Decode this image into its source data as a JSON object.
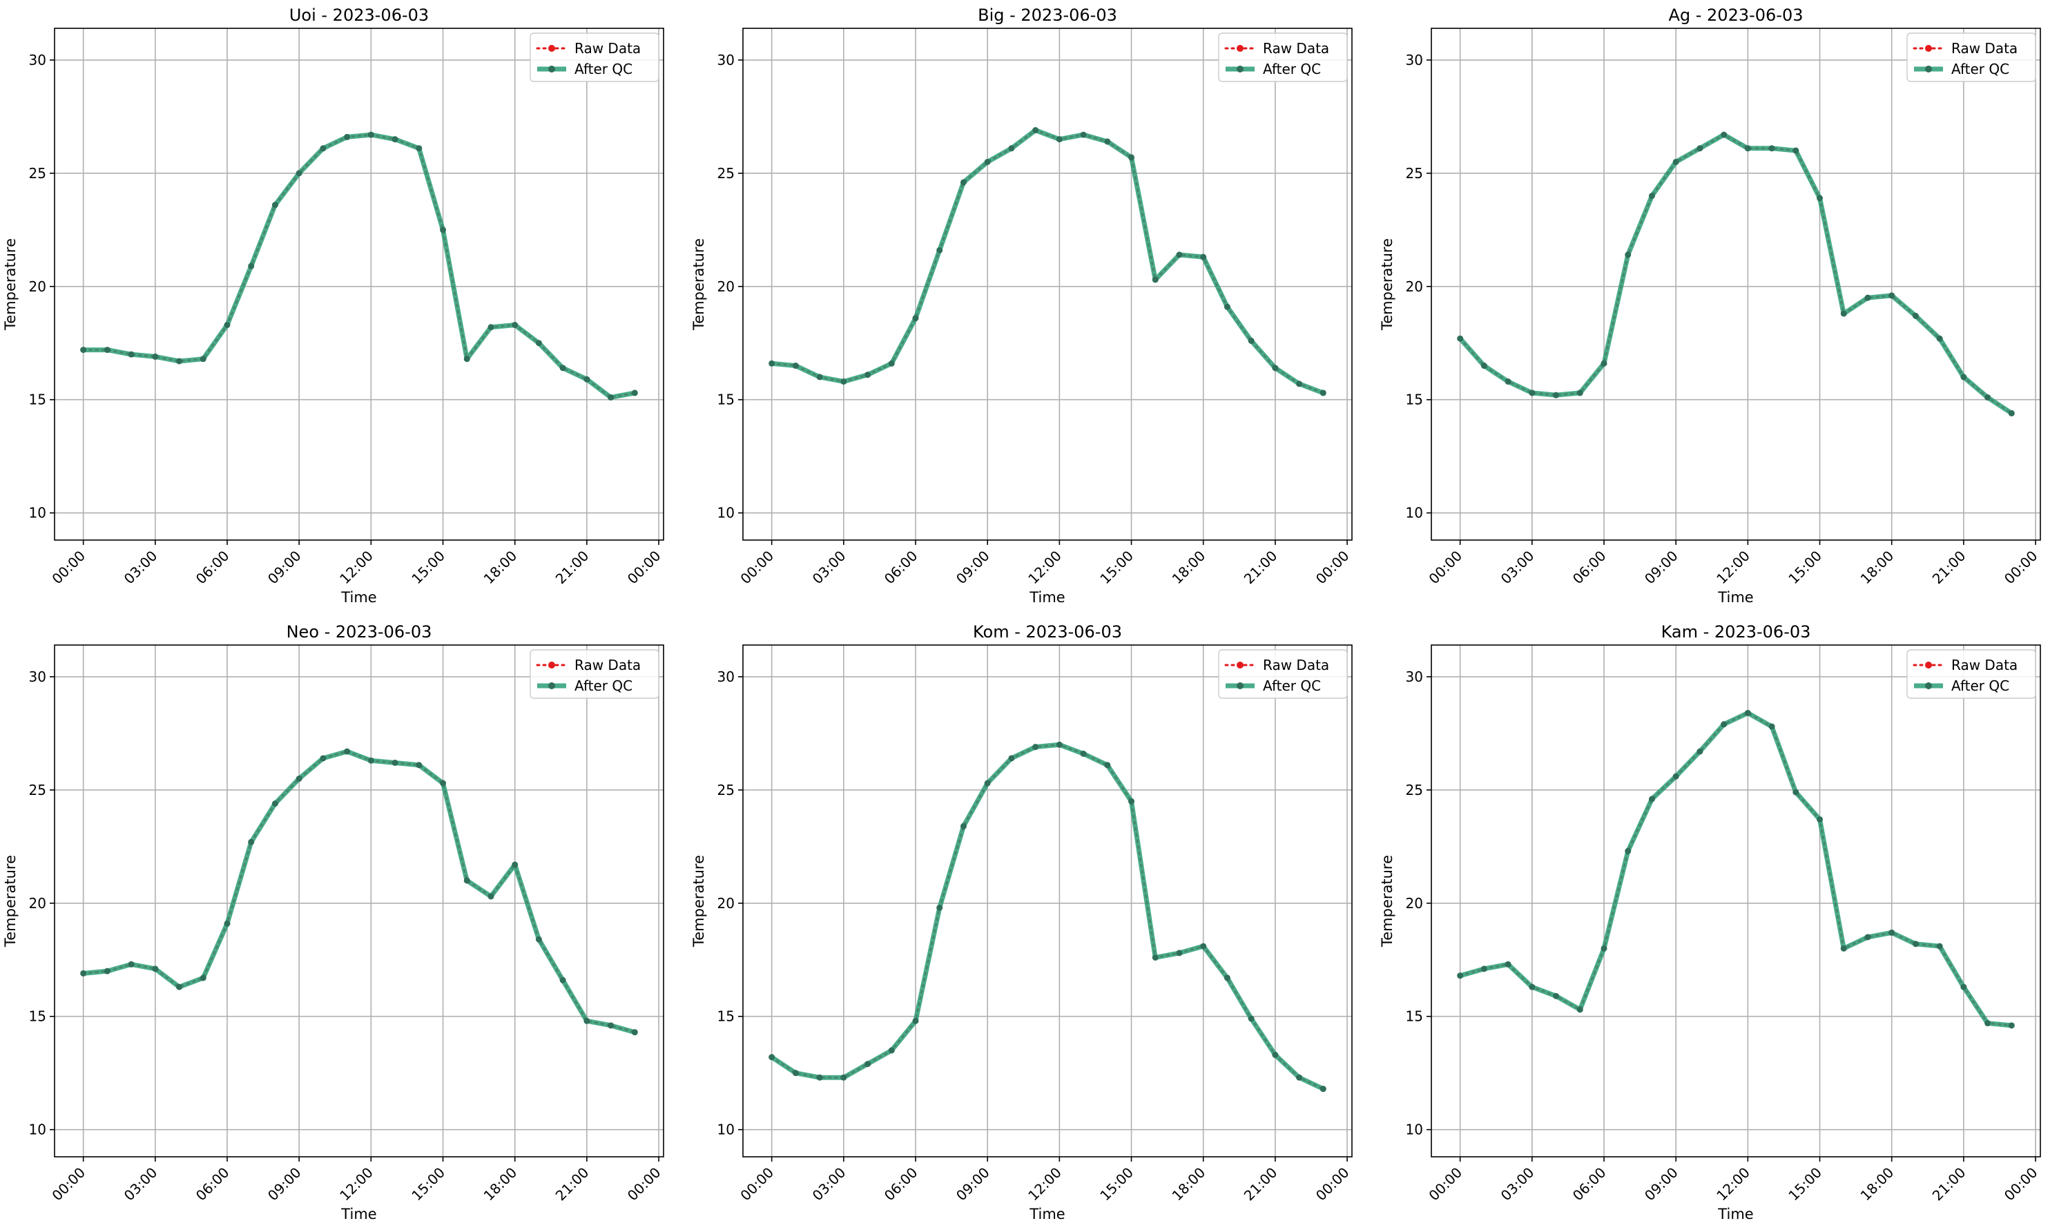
{
  "colors": {
    "raw": "#e41a1c",
    "qc": "#2a9d77",
    "qc_marker": "#2f6f5a",
    "grid": "#b0b0b0",
    "axis": "#000000"
  },
  "legend": {
    "raw_label": "Raw Data",
    "qc_label": "After QC",
    "placement": "upper-right"
  },
  "chart_data": [
    {
      "type": "line",
      "title": "Uoi - 2023-06-03",
      "xlabel": "Time",
      "ylabel": "Temperature",
      "x_unit": "hour",
      "x_tick_labels": [
        "00:00",
        "03:00",
        "06:00",
        "09:00",
        "12:00",
        "15:00",
        "18:00",
        "21:00",
        "00:00"
      ],
      "x_ticks": [
        0,
        3,
        6,
        9,
        12,
        15,
        18,
        21,
        24
      ],
      "xlim": [
        -1.2,
        24.2
      ],
      "y_ticks": [
        10,
        15,
        20,
        25,
        30
      ],
      "ylim": [
        8.8,
        31.4
      ],
      "grid": true,
      "x": [
        0,
        1,
        2,
        3,
        4,
        5,
        6,
        7,
        8,
        9,
        10,
        11,
        12,
        13,
        14,
        15,
        16,
        17,
        18,
        19,
        20,
        21,
        22,
        23
      ],
      "series": [
        {
          "name": "Raw Data",
          "values": [
            17.2,
            17.2,
            17.0,
            16.9,
            16.7,
            16.8,
            18.3,
            20.9,
            23.6,
            25.0,
            26.1,
            26.6,
            26.7,
            26.5,
            26.1,
            22.5,
            16.8,
            18.2,
            18.3,
            17.5,
            16.4,
            15.9,
            15.1,
            15.3
          ]
        },
        {
          "name": "After QC",
          "values": [
            17.2,
            17.2,
            17.0,
            16.9,
            16.7,
            16.8,
            18.3,
            20.9,
            23.6,
            25.0,
            26.1,
            26.6,
            26.7,
            26.5,
            26.1,
            22.5,
            16.8,
            18.2,
            18.3,
            17.5,
            16.4,
            15.9,
            15.1,
            15.3
          ]
        }
      ]
    },
    {
      "type": "line",
      "title": "Big - 2023-06-03",
      "xlabel": "Time",
      "ylabel": "Temperature",
      "x_unit": "hour",
      "x_tick_labels": [
        "00:00",
        "03:00",
        "06:00",
        "09:00",
        "12:00",
        "15:00",
        "18:00",
        "21:00",
        "00:00"
      ],
      "x_ticks": [
        0,
        3,
        6,
        9,
        12,
        15,
        18,
        21,
        24
      ],
      "xlim": [
        -1.2,
        24.2
      ],
      "y_ticks": [
        10,
        15,
        20,
        25,
        30
      ],
      "ylim": [
        8.8,
        31.4
      ],
      "grid": true,
      "x": [
        0,
        1,
        2,
        3,
        4,
        5,
        6,
        7,
        8,
        9,
        10,
        11,
        12,
        13,
        14,
        15,
        16,
        17,
        18,
        19,
        20,
        21,
        22,
        23
      ],
      "series": [
        {
          "name": "Raw Data",
          "values": [
            16.6,
            16.5,
            16.0,
            15.8,
            16.1,
            16.6,
            18.6,
            21.6,
            24.6,
            25.5,
            26.1,
            26.9,
            26.5,
            26.7,
            26.4,
            25.7,
            20.3,
            21.4,
            21.3,
            19.1,
            17.6,
            16.4,
            15.7,
            15.3
          ]
        },
        {
          "name": "After QC",
          "values": [
            16.6,
            16.5,
            16.0,
            15.8,
            16.1,
            16.6,
            18.6,
            21.6,
            24.6,
            25.5,
            26.1,
            26.9,
            26.5,
            26.7,
            26.4,
            25.7,
            20.3,
            21.4,
            21.3,
            19.1,
            17.6,
            16.4,
            15.7,
            15.3
          ]
        }
      ]
    },
    {
      "type": "line",
      "title": "Ag - 2023-06-03",
      "xlabel": "Time",
      "ylabel": "Temperature",
      "x_unit": "hour",
      "x_tick_labels": [
        "00:00",
        "03:00",
        "06:00",
        "09:00",
        "12:00",
        "15:00",
        "18:00",
        "21:00",
        "00:00"
      ],
      "x_ticks": [
        0,
        3,
        6,
        9,
        12,
        15,
        18,
        21,
        24
      ],
      "xlim": [
        -1.2,
        24.2
      ],
      "y_ticks": [
        10,
        15,
        20,
        25,
        30
      ],
      "ylim": [
        8.8,
        31.4
      ],
      "grid": true,
      "x": [
        0,
        1,
        2,
        3,
        4,
        5,
        6,
        7,
        8,
        9,
        10,
        11,
        12,
        13,
        14,
        15,
        16,
        17,
        18,
        19,
        20,
        21,
        22,
        23
      ],
      "series": [
        {
          "name": "Raw Data",
          "values": [
            17.7,
            16.5,
            15.8,
            15.3,
            15.2,
            15.3,
            16.6,
            21.4,
            24.0,
            25.5,
            26.1,
            26.7,
            26.1,
            26.1,
            26.0,
            23.9,
            18.8,
            19.5,
            19.6,
            18.7,
            17.7,
            16.0,
            15.1,
            14.4
          ]
        },
        {
          "name": "After QC",
          "values": [
            17.7,
            16.5,
            15.8,
            15.3,
            15.2,
            15.3,
            16.6,
            21.4,
            24.0,
            25.5,
            26.1,
            26.7,
            26.1,
            26.1,
            26.0,
            23.9,
            18.8,
            19.5,
            19.6,
            18.7,
            17.7,
            16.0,
            15.1,
            14.4
          ]
        }
      ]
    },
    {
      "type": "line",
      "title": "Neo - 2023-06-03",
      "xlabel": "Time",
      "ylabel": "Temperature",
      "x_unit": "hour",
      "x_tick_labels": [
        "00:00",
        "03:00",
        "06:00",
        "09:00",
        "12:00",
        "15:00",
        "18:00",
        "21:00",
        "00:00"
      ],
      "x_ticks": [
        0,
        3,
        6,
        9,
        12,
        15,
        18,
        21,
        24
      ],
      "xlim": [
        -1.2,
        24.2
      ],
      "y_ticks": [
        10,
        15,
        20,
        25,
        30
      ],
      "ylim": [
        8.8,
        31.4
      ],
      "grid": true,
      "x": [
        0,
        1,
        2,
        3,
        4,
        5,
        6,
        7,
        8,
        9,
        10,
        11,
        12,
        13,
        14,
        15,
        16,
        17,
        18,
        19,
        20,
        21,
        22,
        23
      ],
      "series": [
        {
          "name": "Raw Data",
          "values": [
            16.9,
            17.0,
            17.3,
            17.1,
            16.3,
            16.7,
            19.1,
            22.7,
            24.4,
            25.5,
            26.4,
            26.7,
            26.3,
            26.2,
            26.1,
            25.3,
            21.0,
            20.3,
            21.7,
            18.4,
            16.6,
            14.8,
            14.6,
            14.3
          ]
        },
        {
          "name": "After QC",
          "values": [
            16.9,
            17.0,
            17.3,
            17.1,
            16.3,
            16.7,
            19.1,
            22.7,
            24.4,
            25.5,
            26.4,
            26.7,
            26.3,
            26.2,
            26.1,
            25.3,
            21.0,
            20.3,
            21.7,
            18.4,
            16.6,
            14.8,
            14.6,
            14.3
          ]
        }
      ]
    },
    {
      "type": "line",
      "title": "Kom - 2023-06-03",
      "xlabel": "Time",
      "ylabel": "Temperature",
      "x_unit": "hour",
      "x_tick_labels": [
        "00:00",
        "03:00",
        "06:00",
        "09:00",
        "12:00",
        "15:00",
        "18:00",
        "21:00",
        "00:00"
      ],
      "x_ticks": [
        0,
        3,
        6,
        9,
        12,
        15,
        18,
        21,
        24
      ],
      "xlim": [
        -1.2,
        24.2
      ],
      "y_ticks": [
        10,
        15,
        20,
        25,
        30
      ],
      "ylim": [
        8.8,
        31.4
      ],
      "grid": true,
      "x": [
        0,
        1,
        2,
        3,
        4,
        5,
        6,
        7,
        8,
        9,
        10,
        11,
        12,
        13,
        14,
        15,
        16,
        17,
        18,
        19,
        20,
        21,
        22,
        23
      ],
      "series": [
        {
          "name": "Raw Data",
          "values": [
            13.2,
            12.5,
            12.3,
            12.3,
            12.9,
            13.5,
            14.8,
            19.8,
            23.4,
            25.3,
            26.4,
            26.9,
            27.0,
            26.6,
            26.1,
            24.5,
            17.6,
            17.8,
            18.1,
            16.7,
            14.9,
            13.3,
            12.3,
            11.8
          ]
        },
        {
          "name": "After QC",
          "values": [
            13.2,
            12.5,
            12.3,
            12.3,
            12.9,
            13.5,
            14.8,
            19.8,
            23.4,
            25.3,
            26.4,
            26.9,
            27.0,
            26.6,
            26.1,
            24.5,
            17.6,
            17.8,
            18.1,
            16.7,
            14.9,
            13.3,
            12.3,
            11.8
          ]
        }
      ]
    },
    {
      "type": "line",
      "title": "Kam - 2023-06-03",
      "xlabel": "Time",
      "ylabel": "Temperature",
      "x_unit": "hour",
      "x_tick_labels": [
        "00:00",
        "03:00",
        "06:00",
        "09:00",
        "12:00",
        "15:00",
        "18:00",
        "21:00",
        "00:00"
      ],
      "x_ticks": [
        0,
        3,
        6,
        9,
        12,
        15,
        18,
        21,
        24
      ],
      "xlim": [
        -1.2,
        24.2
      ],
      "y_ticks": [
        10,
        15,
        20,
        25,
        30
      ],
      "ylim": [
        8.8,
        31.4
      ],
      "grid": true,
      "x": [
        0,
        1,
        2,
        3,
        4,
        5,
        6,
        7,
        8,
        9,
        10,
        11,
        12,
        13,
        14,
        15,
        16,
        17,
        18,
        19,
        20,
        21,
        22,
        23
      ],
      "series": [
        {
          "name": "Raw Data",
          "values": [
            16.8,
            17.1,
            17.3,
            16.3,
            15.9,
            15.3,
            18.0,
            22.3,
            24.6,
            25.6,
            26.7,
            27.9,
            28.4,
            27.8,
            24.9,
            23.7,
            18.0,
            18.5,
            18.7,
            18.2,
            18.1,
            16.3,
            14.7,
            14.6
          ]
        },
        {
          "name": "After QC",
          "values": [
            16.8,
            17.1,
            17.3,
            16.3,
            15.9,
            15.3,
            18.0,
            22.3,
            24.6,
            25.6,
            26.7,
            27.9,
            28.4,
            27.8,
            24.9,
            23.7,
            18.0,
            18.5,
            18.7,
            18.2,
            18.1,
            16.3,
            14.7,
            14.6
          ]
        }
      ]
    }
  ]
}
